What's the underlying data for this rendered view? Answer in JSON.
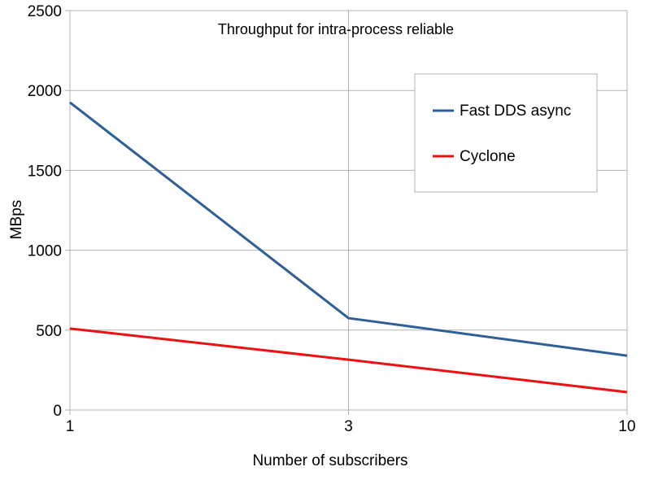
{
  "chart_data": {
    "type": "line",
    "title": "Throughput for intra-process reliable",
    "xlabel": "Number of subscribers",
    "ylabel": "MBps",
    "categories": [
      "1",
      "3",
      "10"
    ],
    "ylim": [
      0,
      2500
    ],
    "yticks": [
      0,
      500,
      1000,
      1500,
      2000,
      2500
    ],
    "grid": true,
    "legend_position": "top-right",
    "series": [
      {
        "name": "Fast DDS async",
        "color": "#2f5f97",
        "values": [
          1925,
          575,
          340
        ]
      },
      {
        "name": "Cyclone",
        "color": "#ee1111",
        "values": [
          510,
          315,
          112
        ]
      }
    ]
  }
}
